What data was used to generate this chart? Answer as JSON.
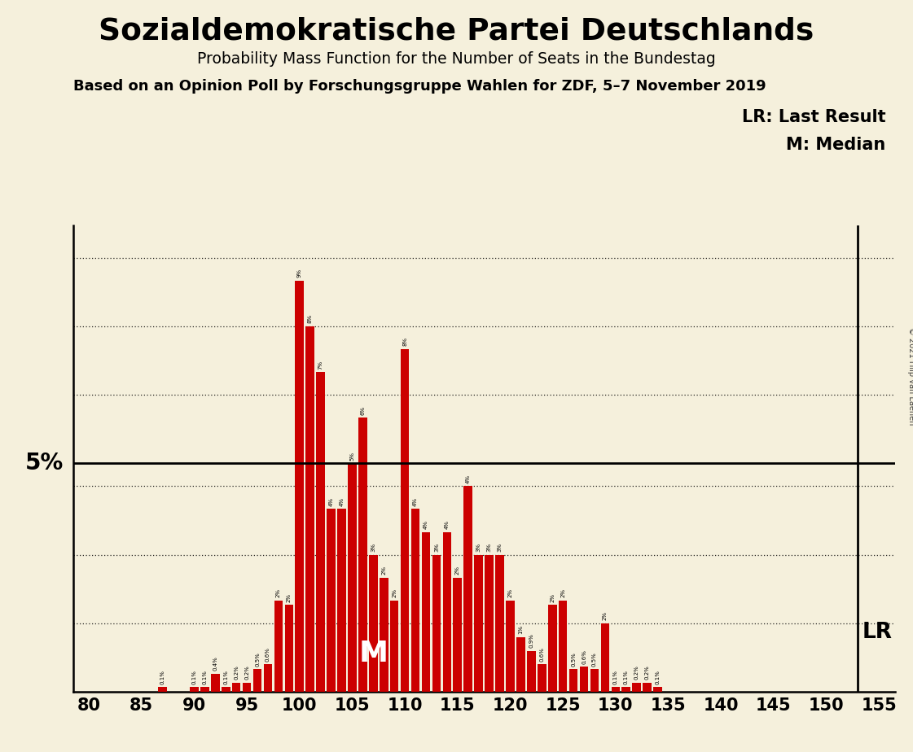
{
  "title": "Sozialdemokratische Partei Deutschlands",
  "subtitle": "Probability Mass Function for the Number of Seats in the Bundestag",
  "source": "Based on an Opinion Poll by Forschungsgruppe Wahlen for ZDF, 5–7 November 2019",
  "copyright": "© 2021 Filip van Laenen",
  "lr_label": "LR: Last Result",
  "m_label": "M: Median",
  "background_color": "#F5F0DC",
  "bar_color": "#CC0000",
  "five_pct_label": "5%",
  "lr_seat": 153,
  "median_seat": 107,
  "ylim_max": 10.2,
  "seats": [
    80,
    81,
    82,
    83,
    84,
    85,
    86,
    87,
    88,
    89,
    90,
    91,
    92,
    93,
    94,
    95,
    96,
    97,
    98,
    99,
    100,
    101,
    102,
    103,
    104,
    105,
    106,
    107,
    108,
    109,
    110,
    111,
    112,
    113,
    114,
    115,
    116,
    117,
    118,
    119,
    120,
    121,
    122,
    123,
    124,
    125,
    126,
    127,
    128,
    129,
    130,
    131,
    132,
    133,
    134,
    135,
    136,
    137,
    138,
    139,
    140,
    141,
    142,
    143,
    144,
    145,
    146,
    147,
    148,
    149,
    150,
    151,
    152,
    153,
    154,
    155
  ],
  "values": [
    0.0,
    0.0,
    0.0,
    0.0,
    0.0,
    0.0,
    0.0,
    0.1,
    0.0,
    0.0,
    0.1,
    0.1,
    0.4,
    0.1,
    0.2,
    0.2,
    0.5,
    0.6,
    2.0,
    1.9,
    9.0,
    8.0,
    7.0,
    4.0,
    4.0,
    5.0,
    6.0,
    3.0,
    2.5,
    2.0,
    7.5,
    4.0,
    3.5,
    3.0,
    3.5,
    2.5,
    4.5,
    3.0,
    3.0,
    3.0,
    2.0,
    1.2,
    0.9,
    0.6,
    1.9,
    2.0,
    0.5,
    0.55,
    0.5,
    1.5,
    0.1,
    0.1,
    0.2,
    0.2,
    0.1,
    0.0,
    0.0,
    0.0,
    0.0,
    0.0,
    0.0,
    0.0,
    0.0,
    0.0,
    0.0,
    0.0,
    0.0,
    0.0,
    0.0,
    0.0,
    0.0,
    0.0,
    0.0,
    0.0,
    0.0,
    0.0
  ],
  "grid_y_dotted": [
    1.5,
    3.0,
    4.5,
    6.5,
    8.0,
    9.5
  ],
  "xtick_step": 5
}
